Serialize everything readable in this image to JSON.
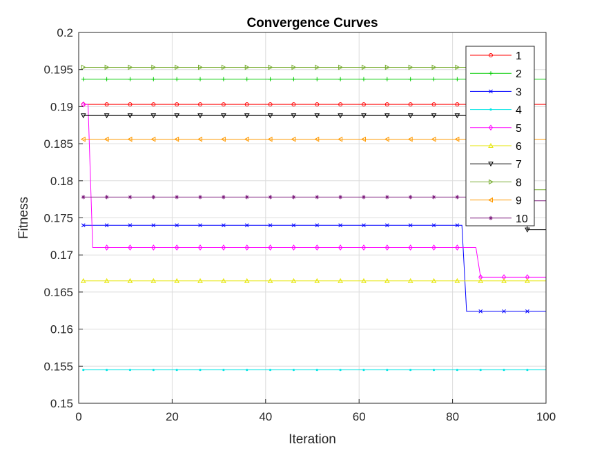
{
  "chart_data": {
    "type": "line",
    "title": "Convergence Curves",
    "xlabel": "Iteration",
    "ylabel": "Fitness",
    "xlim": [
      0,
      100
    ],
    "ylim": [
      0.15,
      0.2
    ],
    "xticks": [
      0,
      20,
      40,
      60,
      80,
      100
    ],
    "xtick_labels": [
      "0",
      "20",
      "40",
      "60",
      "80",
      "100"
    ],
    "yticks": [
      0.15,
      0.155,
      0.16,
      0.165,
      0.17,
      0.175,
      0.18,
      0.185,
      0.19,
      0.195,
      0.2
    ],
    "ytick_labels": [
      "0.15",
      "0.155",
      "0.16",
      "0.165",
      "0.17",
      "0.175",
      "0.18",
      "0.185",
      "0.19",
      "0.195",
      "0.2"
    ],
    "grid": true,
    "legend_position": "top-right",
    "series": [
      {
        "name": "1",
        "color": "#ff0000",
        "marker": "circle",
        "x": [
          1,
          100
        ],
        "y": [
          0.1903,
          0.1903
        ]
      },
      {
        "name": "2",
        "color": "#00cc00",
        "marker": "plus",
        "x": [
          1,
          100
        ],
        "y": [
          0.1937,
          0.1937
        ]
      },
      {
        "name": "3",
        "color": "#0000ff",
        "marker": "x",
        "x": [
          1,
          82,
          83,
          100
        ],
        "y": [
          0.174,
          0.174,
          0.1624,
          0.1624
        ]
      },
      {
        "name": "4",
        "color": "#00e5e5",
        "marker": "dot",
        "x": [
          1,
          100
        ],
        "y": [
          0.1545,
          0.1545
        ]
      },
      {
        "name": "5",
        "color": "#ff00ff",
        "marker": "diamond",
        "x": [
          1,
          2,
          3,
          85,
          86,
          100
        ],
        "y": [
          0.1903,
          0.1903,
          0.171,
          0.171,
          0.167,
          0.167
        ]
      },
      {
        "name": "6",
        "color": "#e5e500",
        "marker": "triangle-up",
        "x": [
          1,
          100
        ],
        "y": [
          0.1665,
          0.1665
        ]
      },
      {
        "name": "7",
        "color": "#000000",
        "marker": "triangle-down",
        "x": [
          1,
          95,
          96,
          100
        ],
        "y": [
          0.1888,
          0.1888,
          0.1734,
          0.1734
        ]
      },
      {
        "name": "8",
        "color": "#77ac30",
        "marker": "triangle-right",
        "x": [
          1,
          95,
          96,
          100
        ],
        "y": [
          0.1953,
          0.1953,
          0.1788,
          0.1788
        ]
      },
      {
        "name": "9",
        "color": "#ff9900",
        "marker": "triangle-left",
        "x": [
          1,
          100
        ],
        "y": [
          0.1856,
          0.1856
        ]
      },
      {
        "name": "10",
        "color": "#7e1e7e",
        "marker": "star",
        "x": [
          1,
          95,
          96,
          100
        ],
        "y": [
          0.1778,
          0.1778,
          0.1773,
          0.1773
        ]
      }
    ]
  }
}
